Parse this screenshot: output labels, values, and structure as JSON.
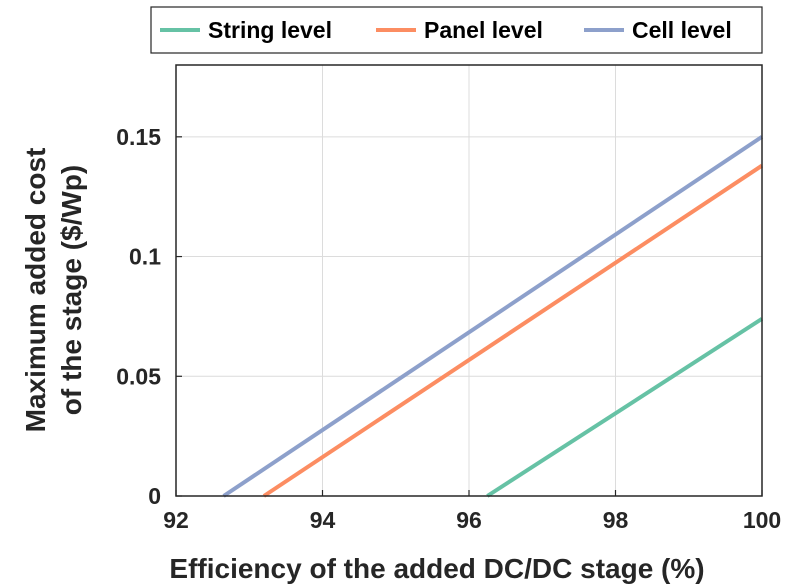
{
  "chart_data": {
    "type": "line",
    "xlabel": "Efficiency of the added DC/DC stage (%)",
    "ylabel_lines": [
      "Maximum added cost",
      "of the stage ($/Wp)"
    ],
    "xlim": [
      92,
      100
    ],
    "ylim": [
      0,
      0.18
    ],
    "xticks": [
      92,
      94,
      96,
      98,
      100
    ],
    "xtick_labels": [
      "92",
      "94",
      "96",
      "98",
      "100"
    ],
    "yticks": [
      0,
      0.05,
      0.1,
      0.15
    ],
    "ytick_labels": [
      "0",
      "0.05",
      "0.1",
      "0.15"
    ],
    "grid": true,
    "legend_position": "top, horizontal, outside plot",
    "series": [
      {
        "name": "String level",
        "color": "#66c2a5",
        "x": [
          96.25,
          100
        ],
        "y": [
          0,
          0.074
        ]
      },
      {
        "name": "Panel level",
        "color": "#fc8d62",
        "x": [
          93.2,
          100
        ],
        "y": [
          0,
          0.138
        ]
      },
      {
        "name": "Cell level",
        "color": "#8da0cb",
        "x": [
          92.65,
          100
        ],
        "y": [
          0,
          0.15
        ]
      }
    ]
  }
}
